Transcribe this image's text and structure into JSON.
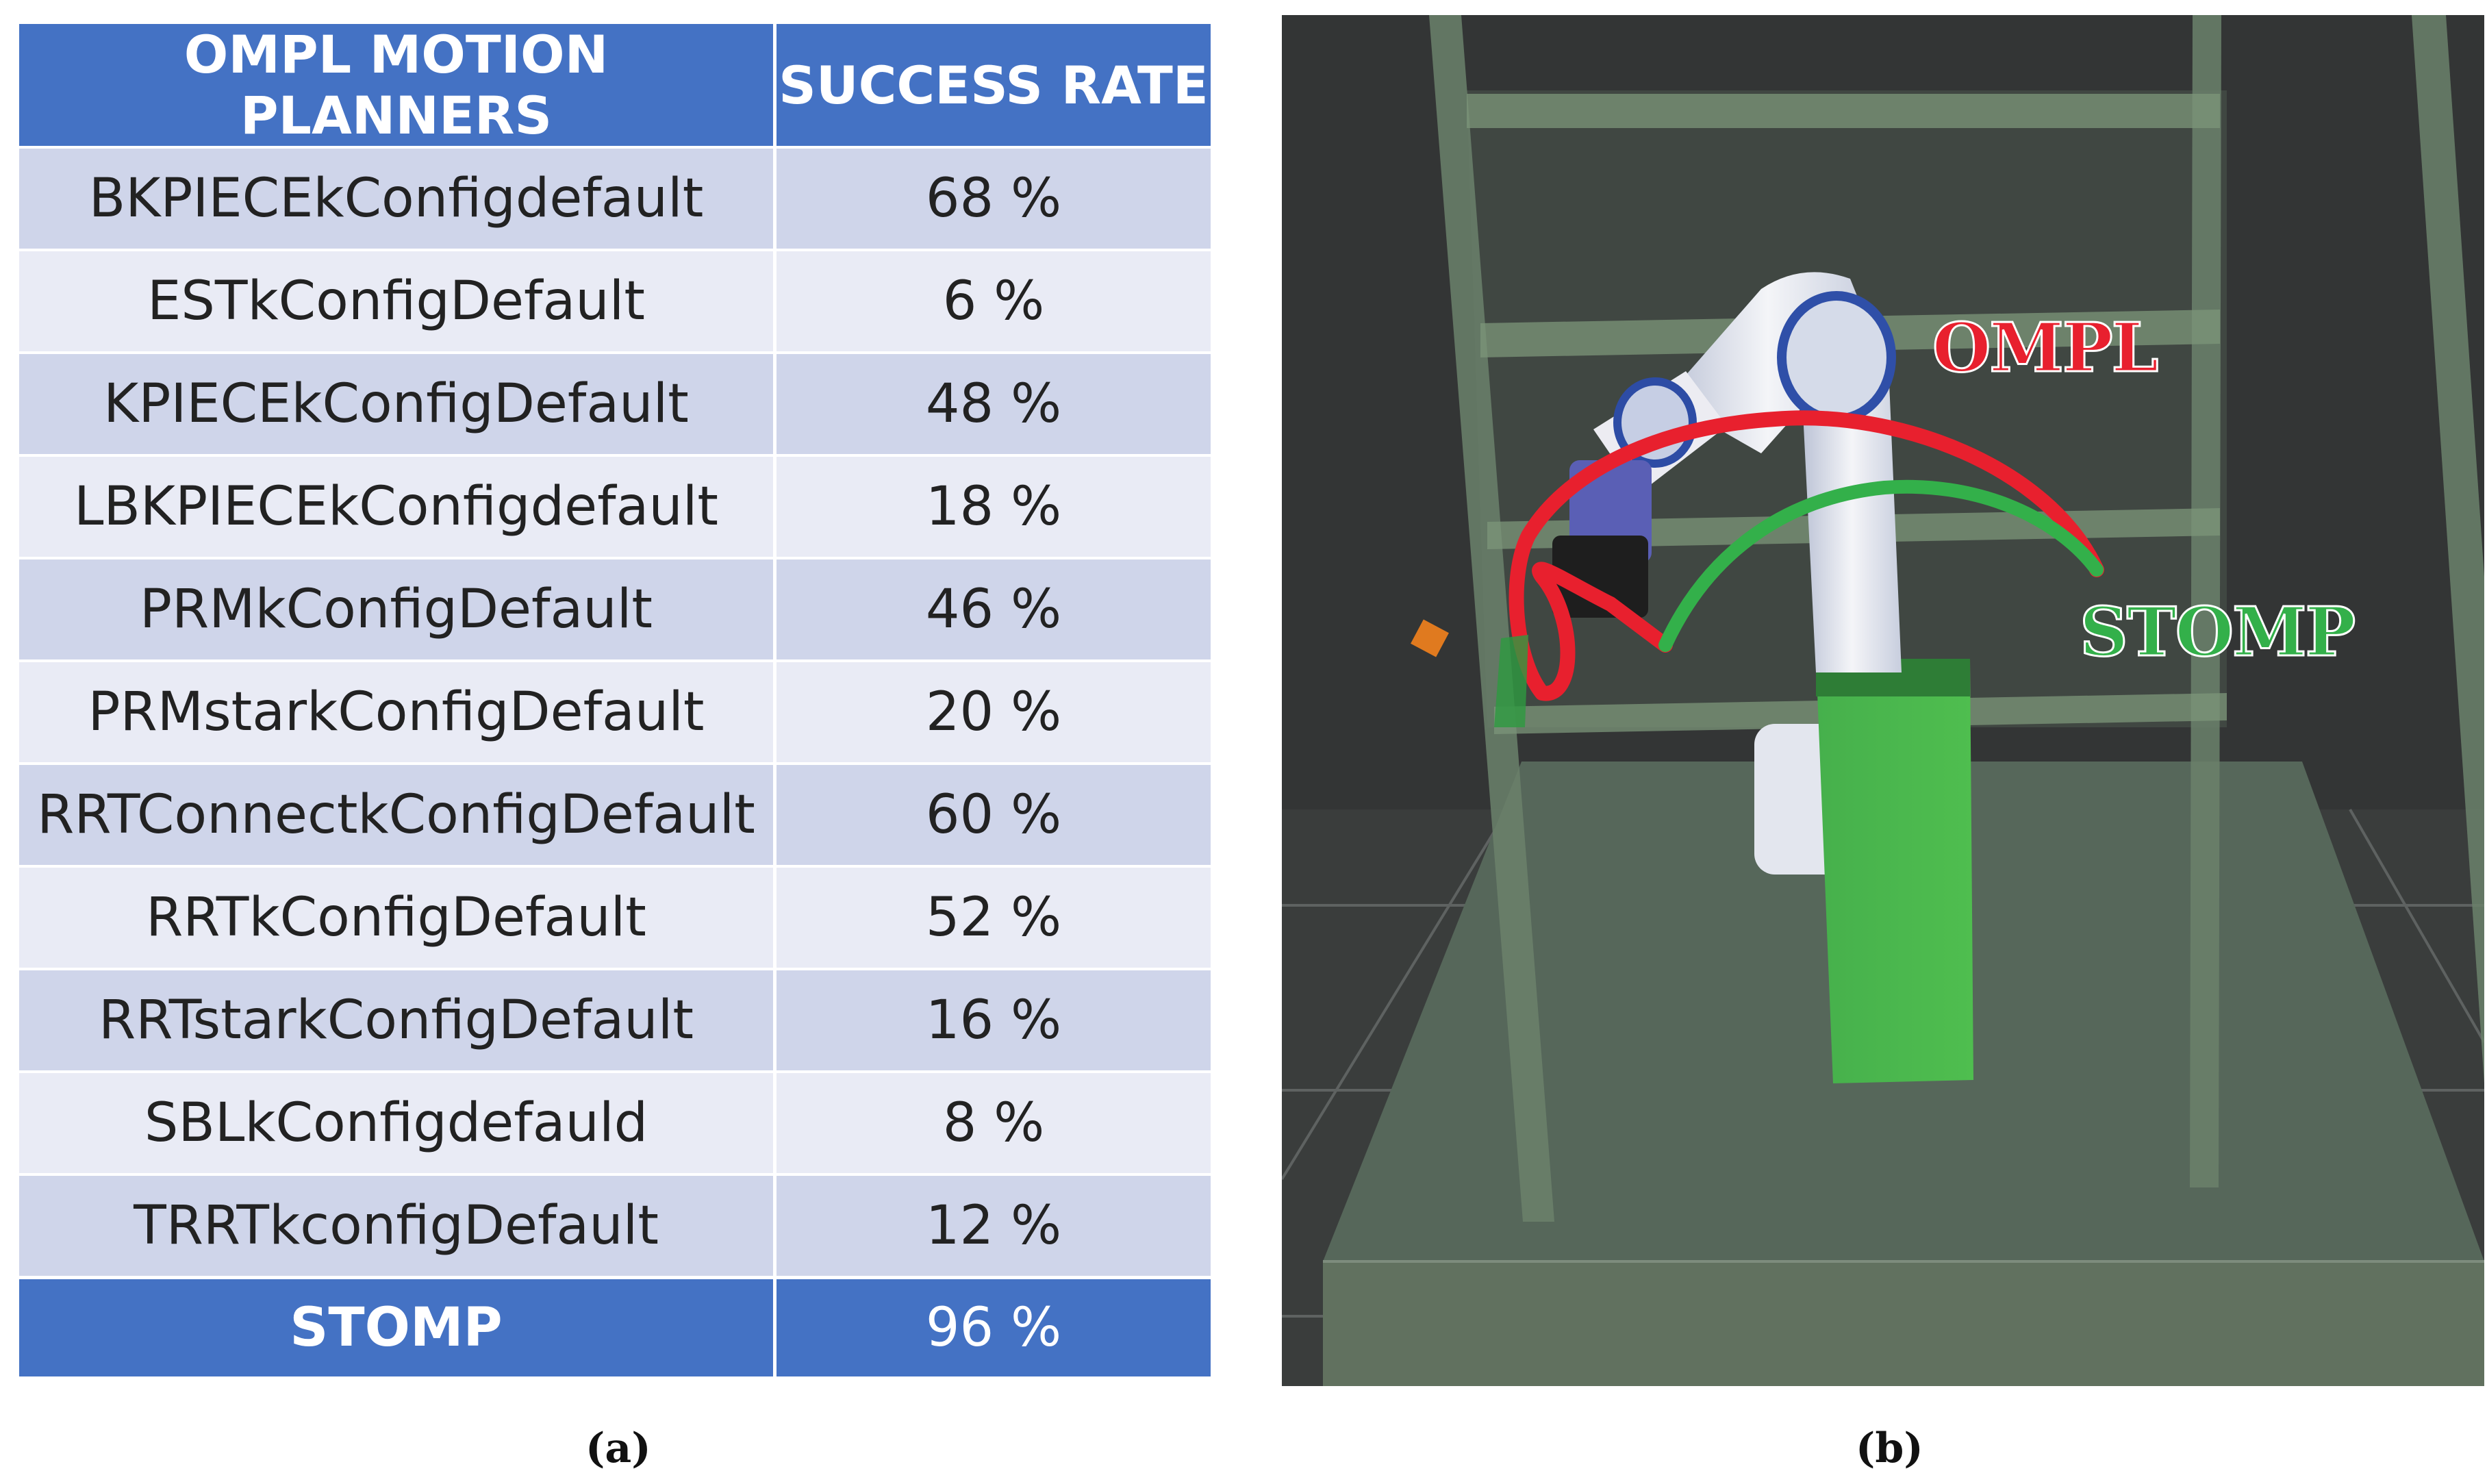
{
  "table": {
    "headers": [
      "OMPL MOTION PLANNERS",
      "SUCCESS RATE"
    ],
    "rows": [
      {
        "planner": "BKPIECEkConfigdefault",
        "rate": "68 %"
      },
      {
        "planner": "ESTkConfigDefault",
        "rate": "6 %"
      },
      {
        "planner": "KPIECEkConfigDefault",
        "rate": "48 %"
      },
      {
        "planner": "LBKPIECEkConfigdefault",
        "rate": "18 %"
      },
      {
        "planner": "PRMkConfigDefault",
        "rate": "46 %"
      },
      {
        "planner": "PRMstarkConfigDefault",
        "rate": "20 %"
      },
      {
        "planner": "RRTConnectkConfigDefault",
        "rate": "60 %"
      },
      {
        "planner": "RRTkConfigDefault",
        "rate": "52 %"
      },
      {
        "planner": "RRTstarkConfigDefault",
        "rate": "16 %"
      },
      {
        "planner": "SBLkConfigdefauld",
        "rate": "8 %"
      },
      {
        "planner": "TRRTkconfigDefault",
        "rate": "12 %"
      }
    ],
    "footer": {
      "planner": "STOMP",
      "rate": "96 %"
    }
  },
  "scene": {
    "ompl_label": "OMPL",
    "stomp_label": "STOMP",
    "colors": {
      "ompl": "#e8202e",
      "stomp": "#33b04a",
      "background": "#333535"
    }
  },
  "captions": {
    "a": "(a)",
    "b": "(b)"
  }
}
